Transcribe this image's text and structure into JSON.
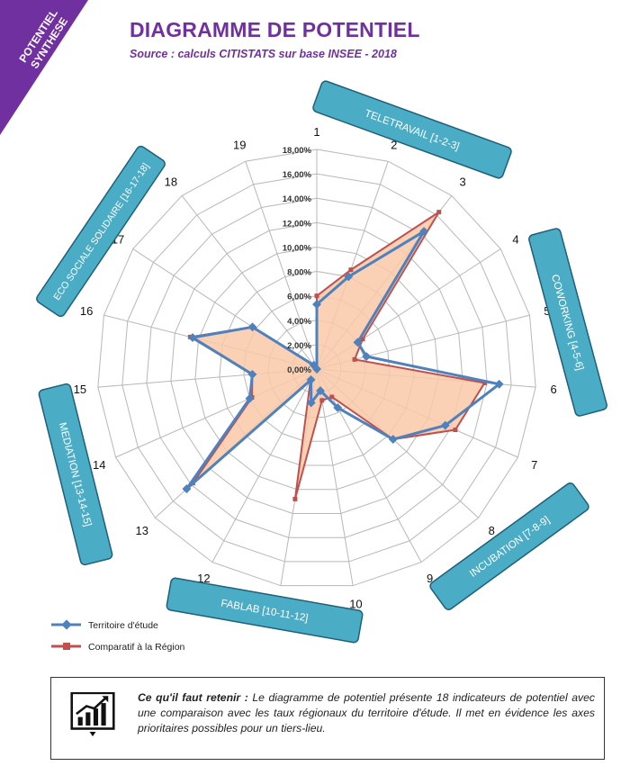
{
  "corner_label": {
    "line1": "POTENTIEL",
    "line2": "SYNTHESE"
  },
  "title": "DIAGRAMME DE POTENTIEL",
  "subtitle": "Source : calculs CITISTATS sur base INSEE - 2018",
  "colors": {
    "purple": "#7030a0",
    "banner": "#4bacc6",
    "territory": "#4f81bd",
    "region_line": "#c0504d",
    "region_fill": "#f9c9a8"
  },
  "banners": [
    {
      "label": "TELETRAVAIL [1-2-3]"
    },
    {
      "label": "COWORKING [4-5-6]"
    },
    {
      "label": "INCUBATION [7-8-9]"
    },
    {
      "label": "FABLAB [10-11-12]"
    },
    {
      "label": "MEDIATION [13-14-15]"
    },
    {
      "label": "ECO SOCIALE SOLIDAIRE [16-17-18]"
    }
  ],
  "chart_data": {
    "type": "radar",
    "categories": [
      "1",
      "2",
      "3",
      "4",
      "5",
      "6",
      "7",
      "8",
      "9",
      "10",
      "11",
      "12",
      "13",
      "14",
      "15",
      "16",
      "17",
      "18",
      "19"
    ],
    "tick_labels": [
      "0,00%",
      "2,00%",
      "4,00%",
      "6,00%",
      "8,00%",
      "10,00%",
      "12,00%",
      "14,00%",
      "16,00%",
      "18,00%"
    ],
    "rmax": 18,
    "series": [
      {
        "name": "Territoire d'étude",
        "color": "#4f81bd",
        "marker": "diamond",
        "values": [
          5.3,
          8.0,
          14.3,
          4.0,
          4.2,
          15.0,
          11.5,
          8.5,
          3.6,
          1.8,
          2.8,
          1.0,
          14.5,
          6.0,
          5.3,
          10.5,
          6.3,
          0.4,
          0
        ]
      },
      {
        "name": "Comparatif à la Région",
        "color": "#c0504d",
        "marker": "square",
        "values": [
          6.0,
          8.6,
          16.3,
          4.5,
          3.2,
          13.8,
          12.4,
          8.5,
          2.6,
          2.6,
          10.8,
          1.1,
          13.8,
          5.8,
          5.3,
          10.7,
          6.3,
          0.4,
          0
        ]
      }
    ],
    "legend": "bottom-left"
  },
  "info": {
    "heading": "Ce qu'il faut retenir :",
    "text": " Le diagramme de potentiel présente 18 indicateurs de potentiel avec  une comparaison avec les taux régionaux du territoire d'étude. Il met en évidence les axes prioritaires possibles pour un tiers-lieu."
  }
}
